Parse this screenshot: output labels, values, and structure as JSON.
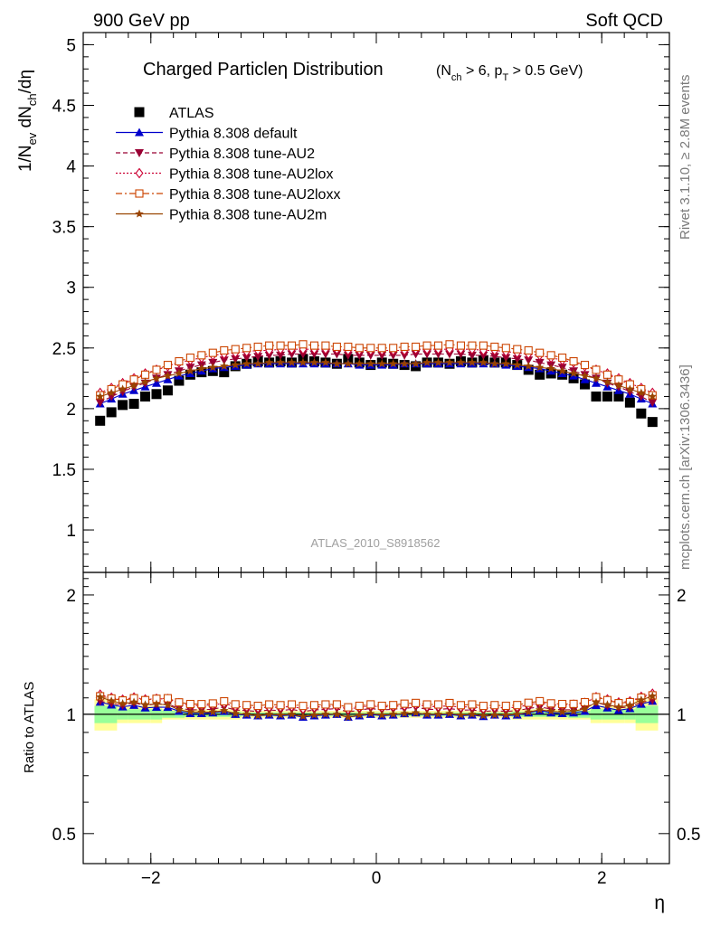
{
  "header": {
    "left": "900 GeV pp",
    "right": "Soft QCD"
  },
  "side_labels": {
    "top": "Rivet 3.1.10, ≥ 2.8M events",
    "bottom": "mcplots.cern.ch [arXiv:1306.3436]"
  },
  "chart_data": {
    "type": "scatter",
    "title_main": "Charged Particleη Distribution",
    "title_cut": "(N_ch > 6, p_T > 0.5 GeV)",
    "analysis_label": "ATLAS_2010_S8918562",
    "ylabel": "1/N_ev dN_ch/dη",
    "ratio_ylabel": "Ratio to ATLAS",
    "xlabel": "η",
    "xlim": [
      -2.6,
      2.6
    ],
    "ylim": [
      0.65,
      5.1
    ],
    "ratio_ylim": [
      0.42,
      2.28
    ],
    "x_ticks": [
      "−2",
      "0",
      "2"
    ],
    "y_ticks": [
      "1",
      "1.5",
      "2",
      "2.5",
      "3",
      "3.5",
      "4",
      "4.5",
      "5"
    ],
    "ratio_y_ticks": [
      "0.5",
      "1",
      "2"
    ],
    "x": [
      -2.45,
      -2.35,
      -2.25,
      -2.15,
      -2.05,
      -1.95,
      -1.85,
      -1.75,
      -1.65,
      -1.55,
      -1.45,
      -1.35,
      -1.25,
      -1.15,
      -1.05,
      -0.95,
      -0.85,
      -0.75,
      -0.65,
      -0.55,
      -0.45,
      -0.35,
      -0.25,
      -0.15,
      -0.05,
      0.05,
      0.15,
      0.25,
      0.35,
      0.45,
      0.55,
      0.65,
      0.75,
      0.85,
      0.95,
      1.05,
      1.15,
      1.25,
      1.35,
      1.45,
      1.55,
      1.65,
      1.75,
      1.85,
      1.95,
      2.05,
      2.15,
      2.25,
      2.35,
      2.45
    ],
    "series": [
      {
        "name": "ATLAS",
        "color": "#000000",
        "marker": "square-filled",
        "line": "none",
        "values": [
          1.9,
          1.97,
          2.03,
          2.04,
          2.1,
          2.12,
          2.15,
          2.23,
          2.28,
          2.3,
          2.31,
          2.3,
          2.35,
          2.37,
          2.39,
          2.38,
          2.39,
          2.38,
          2.41,
          2.39,
          2.38,
          2.37,
          2.41,
          2.38,
          2.36,
          2.38,
          2.37,
          2.36,
          2.35,
          2.38,
          2.38,
          2.37,
          2.39,
          2.38,
          2.4,
          2.38,
          2.38,
          2.36,
          2.32,
          2.28,
          2.29,
          2.28,
          2.25,
          2.2,
          2.1,
          2.1,
          2.1,
          2.05,
          1.96,
          1.89
        ]
      },
      {
        "name": "Pythia 8.308 default",
        "color": "#0000cc",
        "marker": "triangle-up-filled",
        "line": "solid",
        "values": [
          2.04,
          2.08,
          2.12,
          2.15,
          2.18,
          2.21,
          2.24,
          2.27,
          2.29,
          2.31,
          2.33,
          2.34,
          2.35,
          2.36,
          2.37,
          2.37,
          2.37,
          2.37,
          2.37,
          2.37,
          2.37,
          2.37,
          2.37,
          2.36,
          2.36,
          2.36,
          2.36,
          2.37,
          2.37,
          2.37,
          2.37,
          2.37,
          2.37,
          2.37,
          2.37,
          2.37,
          2.36,
          2.35,
          2.34,
          2.33,
          2.31,
          2.29,
          2.27,
          2.24,
          2.21,
          2.18,
          2.15,
          2.12,
          2.08,
          2.04
        ]
      },
      {
        "name": "Pythia 8.308 tune-AU2",
        "color": "#990033",
        "marker": "triangle-down-filled",
        "line": "dashed",
        "values": [
          2.05,
          2.1,
          2.14,
          2.18,
          2.21,
          2.25,
          2.28,
          2.31,
          2.34,
          2.36,
          2.38,
          2.4,
          2.41,
          2.42,
          2.43,
          2.44,
          2.44,
          2.45,
          2.45,
          2.45,
          2.45,
          2.45,
          2.44,
          2.44,
          2.44,
          2.44,
          2.44,
          2.44,
          2.45,
          2.45,
          2.45,
          2.45,
          2.45,
          2.44,
          2.44,
          2.43,
          2.42,
          2.41,
          2.4,
          2.38,
          2.36,
          2.34,
          2.31,
          2.28,
          2.25,
          2.21,
          2.18,
          2.14,
          2.1,
          2.05
        ]
      },
      {
        "name": "Pythia 8.308 tune-AU2lox",
        "color": "#cc0033",
        "marker": "diamond-open",
        "line": "dotted",
        "values": [
          2.13,
          2.17,
          2.21,
          2.25,
          2.29,
          2.32,
          2.35,
          2.38,
          2.4,
          2.42,
          2.44,
          2.45,
          2.46,
          2.47,
          2.48,
          2.48,
          2.49,
          2.49,
          2.49,
          2.49,
          2.49,
          2.49,
          2.48,
          2.48,
          2.48,
          2.48,
          2.48,
          2.48,
          2.49,
          2.49,
          2.49,
          2.49,
          2.49,
          2.49,
          2.48,
          2.48,
          2.47,
          2.46,
          2.45,
          2.44,
          2.42,
          2.4,
          2.38,
          2.35,
          2.32,
          2.29,
          2.25,
          2.21,
          2.17,
          2.13
        ]
      },
      {
        "name": "Pythia 8.308 tune-AU2loxx",
        "color": "#cc4400",
        "marker": "square-open",
        "line": "dashdot",
        "values": [
          2.11,
          2.16,
          2.2,
          2.24,
          2.28,
          2.32,
          2.36,
          2.39,
          2.42,
          2.44,
          2.46,
          2.48,
          2.49,
          2.5,
          2.51,
          2.52,
          2.52,
          2.52,
          2.53,
          2.52,
          2.52,
          2.51,
          2.51,
          2.5,
          2.5,
          2.5,
          2.5,
          2.51,
          2.51,
          2.52,
          2.52,
          2.53,
          2.52,
          2.52,
          2.52,
          2.51,
          2.5,
          2.49,
          2.48,
          2.46,
          2.44,
          2.42,
          2.39,
          2.36,
          2.32,
          2.28,
          2.24,
          2.2,
          2.16,
          2.11
        ]
      },
      {
        "name": "Pythia 8.308 tune-AU2m",
        "color": "#994400",
        "marker": "star-filled",
        "line": "solid",
        "values": [
          2.1,
          2.13,
          2.16,
          2.19,
          2.22,
          2.25,
          2.27,
          2.29,
          2.31,
          2.33,
          2.34,
          2.35,
          2.36,
          2.37,
          2.37,
          2.38,
          2.38,
          2.38,
          2.38,
          2.38,
          2.38,
          2.37,
          2.37,
          2.37,
          2.37,
          2.37,
          2.37,
          2.37,
          2.37,
          2.38,
          2.38,
          2.38,
          2.38,
          2.38,
          2.38,
          2.37,
          2.37,
          2.36,
          2.35,
          2.34,
          2.33,
          2.31,
          2.29,
          2.27,
          2.25,
          2.22,
          2.19,
          2.16,
          2.13,
          2.1
        ]
      }
    ],
    "ratio_bands": [
      {
        "name": "syst",
        "color": "#ffff99",
        "edges": [
          -2.5,
          -2.3,
          -2.2,
          -2.0,
          -1.9,
          -1.7,
          -1.2,
          1.2,
          1.7,
          1.9,
          2.0,
          2.2,
          2.3,
          2.5
        ],
        "lo": [
          0.91,
          0.95,
          0.95,
          0.95,
          0.97,
          0.97,
          0.98,
          0.97,
          0.97,
          0.95,
          0.95,
          0.95,
          0.91
        ],
        "hi": [
          1.09,
          1.05,
          1.05,
          1.05,
          1.03,
          1.03,
          1.02,
          1.03,
          1.03,
          1.05,
          1.05,
          1.05,
          1.09
        ]
      },
      {
        "name": "stat",
        "color": "#99ff99",
        "edges": [
          -2.5,
          -2.3,
          -2.2,
          -2.0,
          -1.9,
          -1.7,
          -1.2,
          1.2,
          1.7,
          1.9,
          2.0,
          2.2,
          2.3,
          2.5
        ],
        "lo": [
          0.95,
          0.97,
          0.97,
          0.97,
          0.98,
          0.985,
          0.99,
          0.985,
          0.98,
          0.97,
          0.97,
          0.97,
          0.95
        ],
        "hi": [
          1.05,
          1.03,
          1.03,
          1.03,
          1.02,
          1.015,
          1.01,
          1.015,
          1.02,
          1.03,
          1.03,
          1.03,
          1.05
        ]
      }
    ]
  }
}
